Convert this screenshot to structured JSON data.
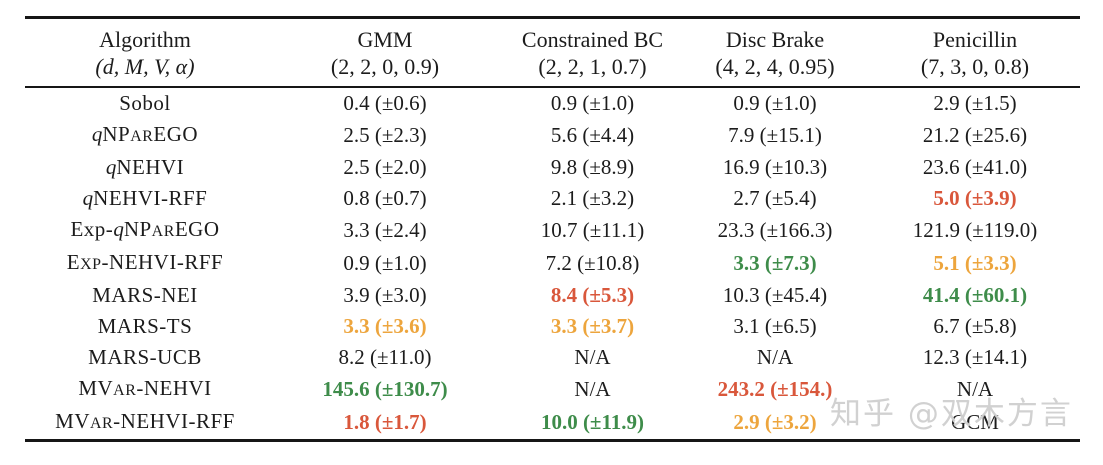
{
  "colors": {
    "black": "#1c1c1c",
    "red": "#d9573b",
    "orange": "#eda53d",
    "green": "#3e8c4a",
    "rule": "#161616",
    "watermark": "#cbcbcb"
  },
  "table": {
    "header": {
      "col0": {
        "name": "Algorithm",
        "params": "(d, M, V, α)"
      },
      "cols": [
        {
          "name": "GMM",
          "params": "(2, 2, 0, 0.9)"
        },
        {
          "name": "Constrained BC",
          "params": "(2, 2, 1, 0.7)"
        },
        {
          "name": "Disc Brake",
          "params": "(4, 2, 4, 0.95)"
        },
        {
          "name": "Penicillin",
          "params": "(7, 3, 0, 0.8)"
        }
      ]
    },
    "rows": [
      {
        "label": "Sobol",
        "label_parts": [
          [
            "Sobol",
            ""
          ]
        ],
        "cells": [
          {
            "text": "0.4 (±0.6)",
            "color": "black"
          },
          {
            "text": "0.9 (±1.0)",
            "color": "black"
          },
          {
            "text": "0.9 (±1.0)",
            "color": "black"
          },
          {
            "text": "2.9 (±1.5)",
            "color": "black"
          }
        ]
      },
      {
        "label": "qNParEGO",
        "label_parts": [
          [
            "q",
            "it"
          ],
          [
            "NP",
            ""
          ],
          [
            "AR",
            "sc"
          ],
          [
            "EGO",
            ""
          ]
        ],
        "cells": [
          {
            "text": "2.5 (±2.3)",
            "color": "black"
          },
          {
            "text": "5.6 (±4.4)",
            "color": "black"
          },
          {
            "text": "7.9 (±15.1)",
            "color": "black"
          },
          {
            "text": "21.2 (±25.6)",
            "color": "black"
          }
        ]
      },
      {
        "label": "qNEHVI",
        "label_parts": [
          [
            "q",
            "it"
          ],
          [
            "NEHVI",
            ""
          ]
        ],
        "cells": [
          {
            "text": "2.5 (±2.0)",
            "color": "black"
          },
          {
            "text": "9.8 (±8.9)",
            "color": "black"
          },
          {
            "text": "16.9 (±10.3)",
            "color": "black"
          },
          {
            "text": "23.6 (±41.0)",
            "color": "black"
          }
        ]
      },
      {
        "label": "qNEHVI-RFF",
        "label_parts": [
          [
            "q",
            "it"
          ],
          [
            "NEHVI-RFF",
            ""
          ]
        ],
        "cells": [
          {
            "text": "0.8 (±0.7)",
            "color": "black"
          },
          {
            "text": "2.1 (±3.2)",
            "color": "black"
          },
          {
            "text": "2.7 (±5.4)",
            "color": "black"
          },
          {
            "text": "5.0 (±3.9)",
            "color": "red"
          }
        ]
      },
      {
        "label": "Exp-qNParEGO",
        "label_parts": [
          [
            "Exp-",
            ""
          ],
          [
            "q",
            "it"
          ],
          [
            "NP",
            ""
          ],
          [
            "AR",
            "sc"
          ],
          [
            "EGO",
            ""
          ]
        ],
        "cells": [
          {
            "text": "3.3 (±2.4)",
            "color": "black"
          },
          {
            "text": "10.7 (±11.1)",
            "color": "black"
          },
          {
            "text": "23.3 (±166.3)",
            "color": "black"
          },
          {
            "text": "121.9 (±119.0)",
            "color": "black"
          }
        ]
      },
      {
        "label": "Exp-NEHVI-RFF",
        "label_parts": [
          [
            "E",
            ""
          ],
          [
            "XP",
            "sc"
          ],
          [
            "-NEHVI-RFF",
            ""
          ]
        ],
        "cells": [
          {
            "text": "0.9 (±1.0)",
            "color": "black"
          },
          {
            "text": "7.2 (±10.8)",
            "color": "black"
          },
          {
            "text": "3.3 (±7.3)",
            "color": "green"
          },
          {
            "text": "5.1 (±3.3)",
            "color": "orange"
          }
        ]
      },
      {
        "label": "MARS-NEI",
        "label_parts": [
          [
            "MARS-NEI",
            ""
          ]
        ],
        "cells": [
          {
            "text": "3.9 (±3.0)",
            "color": "black"
          },
          {
            "text": "8.4 (±5.3)",
            "color": "red"
          },
          {
            "text": "10.3 (±45.4)",
            "color": "black"
          },
          {
            "text": "41.4 (±60.1)",
            "color": "green"
          }
        ]
      },
      {
        "label": "MARS-TS",
        "label_parts": [
          [
            "MARS-TS",
            ""
          ]
        ],
        "cells": [
          {
            "text": "3.3 (±3.6)",
            "color": "orange"
          },
          {
            "text": "3.3 (±3.7)",
            "color": "orange"
          },
          {
            "text": "3.1 (±6.5)",
            "color": "black"
          },
          {
            "text": "6.7 (±5.8)",
            "color": "black"
          }
        ]
      },
      {
        "label": "MARS-UCB",
        "label_parts": [
          [
            "MARS-UCB",
            ""
          ]
        ],
        "cells": [
          {
            "text": "8.2 (±11.0)",
            "color": "black"
          },
          {
            "text": "N/A",
            "color": "black"
          },
          {
            "text": "N/A",
            "color": "black"
          },
          {
            "text": "12.3 (±14.1)",
            "color": "black"
          }
        ]
      },
      {
        "label": "MVaR-NEHVI",
        "label_parts": [
          [
            "MV",
            ""
          ],
          [
            "AR",
            "sc"
          ],
          [
            "-NEHVI",
            ""
          ]
        ],
        "cells": [
          {
            "text": "145.6 (±130.7)",
            "color": "green"
          },
          {
            "text": "N/A",
            "color": "black"
          },
          {
            "text": "243.2 (±154.)",
            "color": "red"
          },
          {
            "text": "N/A",
            "color": "black"
          }
        ]
      },
      {
        "label": "MVaR-NEHVI-RFF",
        "label_parts": [
          [
            "MV",
            ""
          ],
          [
            "AR",
            "sc"
          ],
          [
            "-NEHVI-RFF",
            ""
          ]
        ],
        "cells": [
          {
            "text": "1.8 (±1.7)",
            "color": "red"
          },
          {
            "text": "10.0 (±11.9)",
            "color": "green"
          },
          {
            "text": "2.9 (±3.2)",
            "color": "orange"
          },
          {
            "text": "GCM",
            "color": "black"
          }
        ]
      }
    ]
  },
  "watermark": {
    "text": "知乎 @双木方言"
  }
}
